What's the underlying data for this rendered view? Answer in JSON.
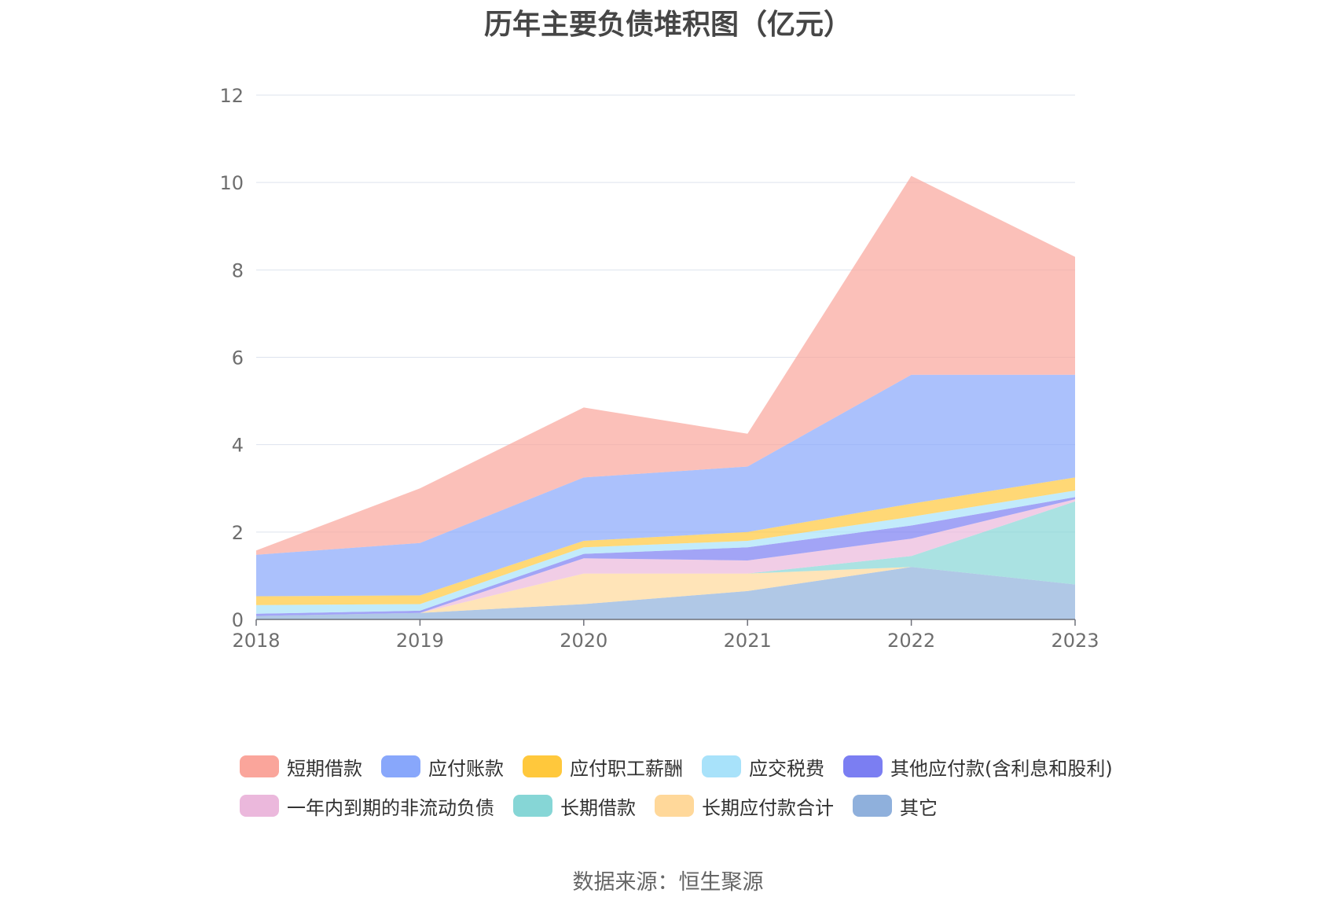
{
  "chart_data": {
    "type": "area",
    "stacked": true,
    "title": "历年主要负债堆积图（亿元）",
    "xlabel": "",
    "ylabel": "",
    "x": [
      "2018",
      "2019",
      "2020",
      "2021",
      "2022",
      "2023"
    ],
    "ylim": [
      0,
      12
    ],
    "yticks": [
      "0",
      "2",
      "4",
      "6",
      "8",
      "10",
      "12"
    ],
    "grid": true,
    "legend_position": "bottom",
    "series": [
      {
        "name": "其它",
        "color": "#8fb0dc",
        "values": [
          0.08,
          0.15,
          0.35,
          0.65,
          1.2,
          0.8
        ]
      },
      {
        "name": "长期应付款合计",
        "color": "#ffd89a",
        "values": [
          0.0,
          0.0,
          0.7,
          0.4,
          0.0,
          0.0
        ]
      },
      {
        "name": "长期借款",
        "color": "#86d6d6",
        "values": [
          0.0,
          0.0,
          0.0,
          0.0,
          0.25,
          1.9
        ]
      },
      {
        "name": "一年内到期的非流动负债",
        "color": "#ebb8dc",
        "values": [
          0.0,
          0.0,
          0.35,
          0.3,
          0.4,
          0.05
        ]
      },
      {
        "name": "其他应付款(含利息和股利)",
        "color": "#7b7ef2",
        "values": [
          0.05,
          0.05,
          0.1,
          0.3,
          0.3,
          0.05
        ]
      },
      {
        "name": "应交税费",
        "color": "#a8e2fa",
        "values": [
          0.2,
          0.15,
          0.15,
          0.15,
          0.2,
          0.15
        ]
      },
      {
        "name": "应付职工薪酬",
        "color": "#ffc83c",
        "values": [
          0.2,
          0.2,
          0.15,
          0.2,
          0.3,
          0.3
        ]
      },
      {
        "name": "应付账款",
        "color": "#88a7fb",
        "values": [
          0.95,
          1.2,
          1.45,
          1.5,
          2.95,
          2.35
        ]
      },
      {
        "name": "短期借款",
        "color": "#faa59b",
        "values": [
          0.1,
          1.25,
          1.6,
          0.75,
          4.55,
          2.7
        ]
      }
    ],
    "legend_rows": [
      [
        "短期借款",
        "应付账款",
        "应付职工薪酬",
        "应交税费",
        "其他应付款(含利息和股利)"
      ],
      [
        "一年内到期的非流动负债",
        "长期借款",
        "长期应付款合计",
        "其它"
      ]
    ]
  },
  "source_text": "数据来源：恒生聚源"
}
